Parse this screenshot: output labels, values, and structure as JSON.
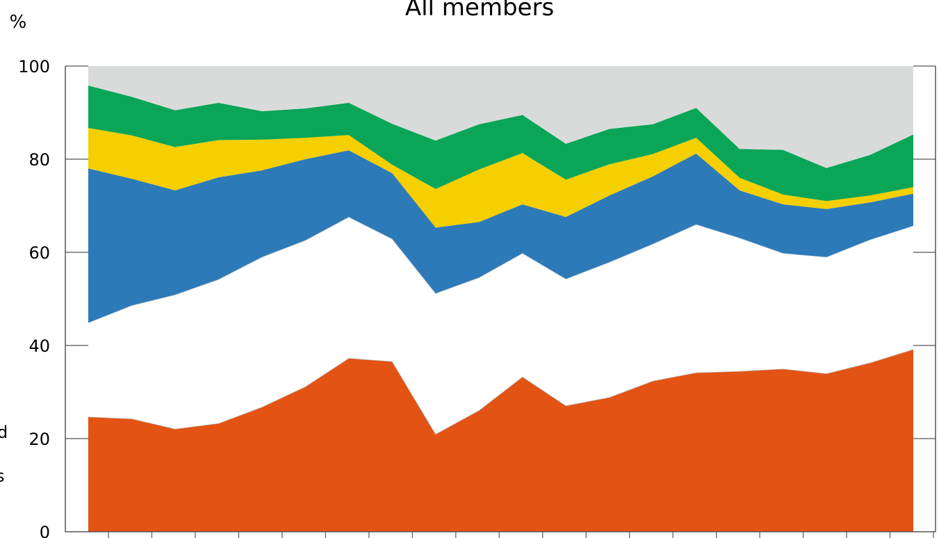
{
  "chart_data": {
    "type": "area",
    "stacked": true,
    "title": "All members",
    "ylabel": "%",
    "ylim": [
      0,
      100
    ],
    "yticks": [
      0,
      20,
      40,
      60,
      80,
      100
    ],
    "grid": true,
    "x": [
      1,
      2,
      3,
      4,
      5,
      6,
      7,
      8,
      9,
      10,
      11,
      12,
      13,
      14,
      15,
      16,
      17,
      18,
      19,
      20
    ],
    "series": [
      {
        "color": "#e35314",
        "values": [
          24.7,
          24.3,
          22.1,
          23.3,
          26.8,
          31.2,
          37.3,
          36.6,
          21.0,
          26.1,
          33.3,
          27.1,
          28.9,
          32.4,
          34.2,
          34.5,
          35.0,
          34.0,
          36.3,
          39.2
        ]
      },
      {
        "color": "#ffffff",
        "values": [
          20.2,
          24.3,
          28.8,
          30.9,
          32.2,
          31.4,
          30.3,
          26.3,
          30.2,
          28.5,
          26.5,
          27.2,
          29.0,
          29.4,
          31.8,
          28.6,
          24.8,
          25.0,
          26.4,
          26.5
        ]
      },
      {
        "color": "#2d7ab9",
        "values": [
          33.1,
          27.2,
          22.4,
          21.9,
          18.6,
          17.4,
          14.3,
          14.1,
          14.1,
          11.9,
          10.5,
          13.3,
          14.3,
          14.5,
          15.2,
          10.2,
          10.5,
          10.3,
          8.0,
          6.9
        ]
      },
      {
        "color": "#f5cf00",
        "values": [
          8.7,
          9.3,
          9.3,
          8.0,
          6.6,
          4.6,
          3.3,
          1.8,
          8.3,
          11.3,
          11.0,
          8.0,
          6.7,
          4.8,
          3.4,
          2.7,
          2.1,
          1.7,
          1.5,
          1.4
        ]
      },
      {
        "color": "#0aa557",
        "values": [
          9.1,
          8.3,
          7.9,
          8.0,
          6.1,
          6.3,
          6.9,
          8.8,
          10.4,
          9.7,
          8.2,
          7.7,
          7.6,
          6.4,
          6.4,
          6.2,
          9.6,
          7.1,
          8.7,
          11.3
        ]
      },
      {
        "color": "#d9dbda",
        "values": [
          4.2,
          6.6,
          9.5,
          7.9,
          9.7,
          9.1,
          7.9,
          12.4,
          16.0,
          12.5,
          10.5,
          16.7,
          13.5,
          12.5,
          9.0,
          17.8,
          18.0,
          21.9,
          19.1,
          14.7
        ]
      }
    ],
    "left_edge_text": [
      "d",
      "s"
    ]
  }
}
